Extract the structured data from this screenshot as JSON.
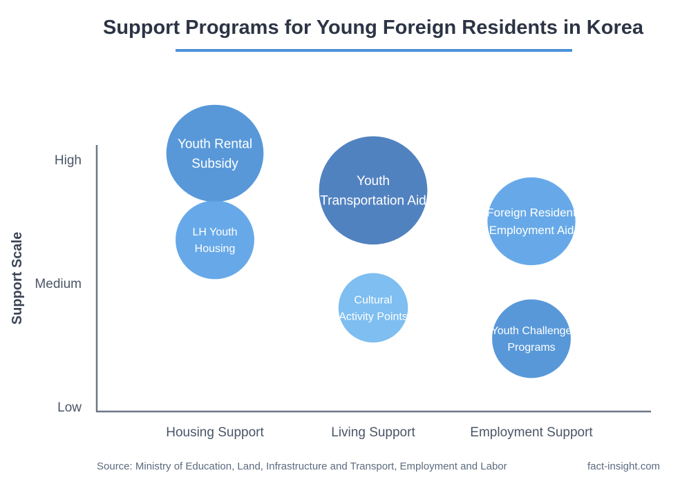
{
  "chart_data": {
    "type": "scatter",
    "title": "Support Programs for Young Foreign Residents in Korea",
    "xlabel": "",
    "ylabel": "Support Scale",
    "categories": [
      "Housing Support",
      "Living Support",
      "Employment Support"
    ],
    "y_ticks": [
      "Low",
      "Medium",
      "High"
    ],
    "ylim": [
      0,
      2
    ],
    "points": [
      {
        "category": "Housing Support",
        "y": 2.05,
        "size": 1.05,
        "label_lines": [
          "Youth Rental",
          "Subsidy"
        ],
        "color": "#4a8fd6"
      },
      {
        "category": "Housing Support",
        "y": 1.35,
        "size": 0.85,
        "label_lines": [
          "LH Youth",
          "Housing"
        ],
        "color": "#5aa2e6"
      },
      {
        "category": "Living Support",
        "y": 1.75,
        "size": 1.17,
        "label_lines": [
          "Youth",
          "Transportation Aid"
        ],
        "color": "#4277bb"
      },
      {
        "category": "Living Support",
        "y": 0.8,
        "size": 0.75,
        "label_lines": [
          "Cultural",
          "Activity Points"
        ],
        "color": "#73b8ef"
      },
      {
        "category": "Employment Support",
        "y": 1.5,
        "size": 0.95,
        "label_lines": [
          "Foreign Resident",
          "Employment Aid"
        ],
        "color": "#5aa2e6"
      },
      {
        "category": "Employment Support",
        "y": 0.55,
        "size": 0.85,
        "label_lines": [
          "Youth Challenge",
          "Programs"
        ],
        "color": "#4a8fd6"
      }
    ],
    "grid": false,
    "legend": "none"
  },
  "footer": {
    "source": "Source: Ministry of Education, Land, Infrastructure and Transport, Employment and Labor",
    "site": "fact-insight.com"
  }
}
